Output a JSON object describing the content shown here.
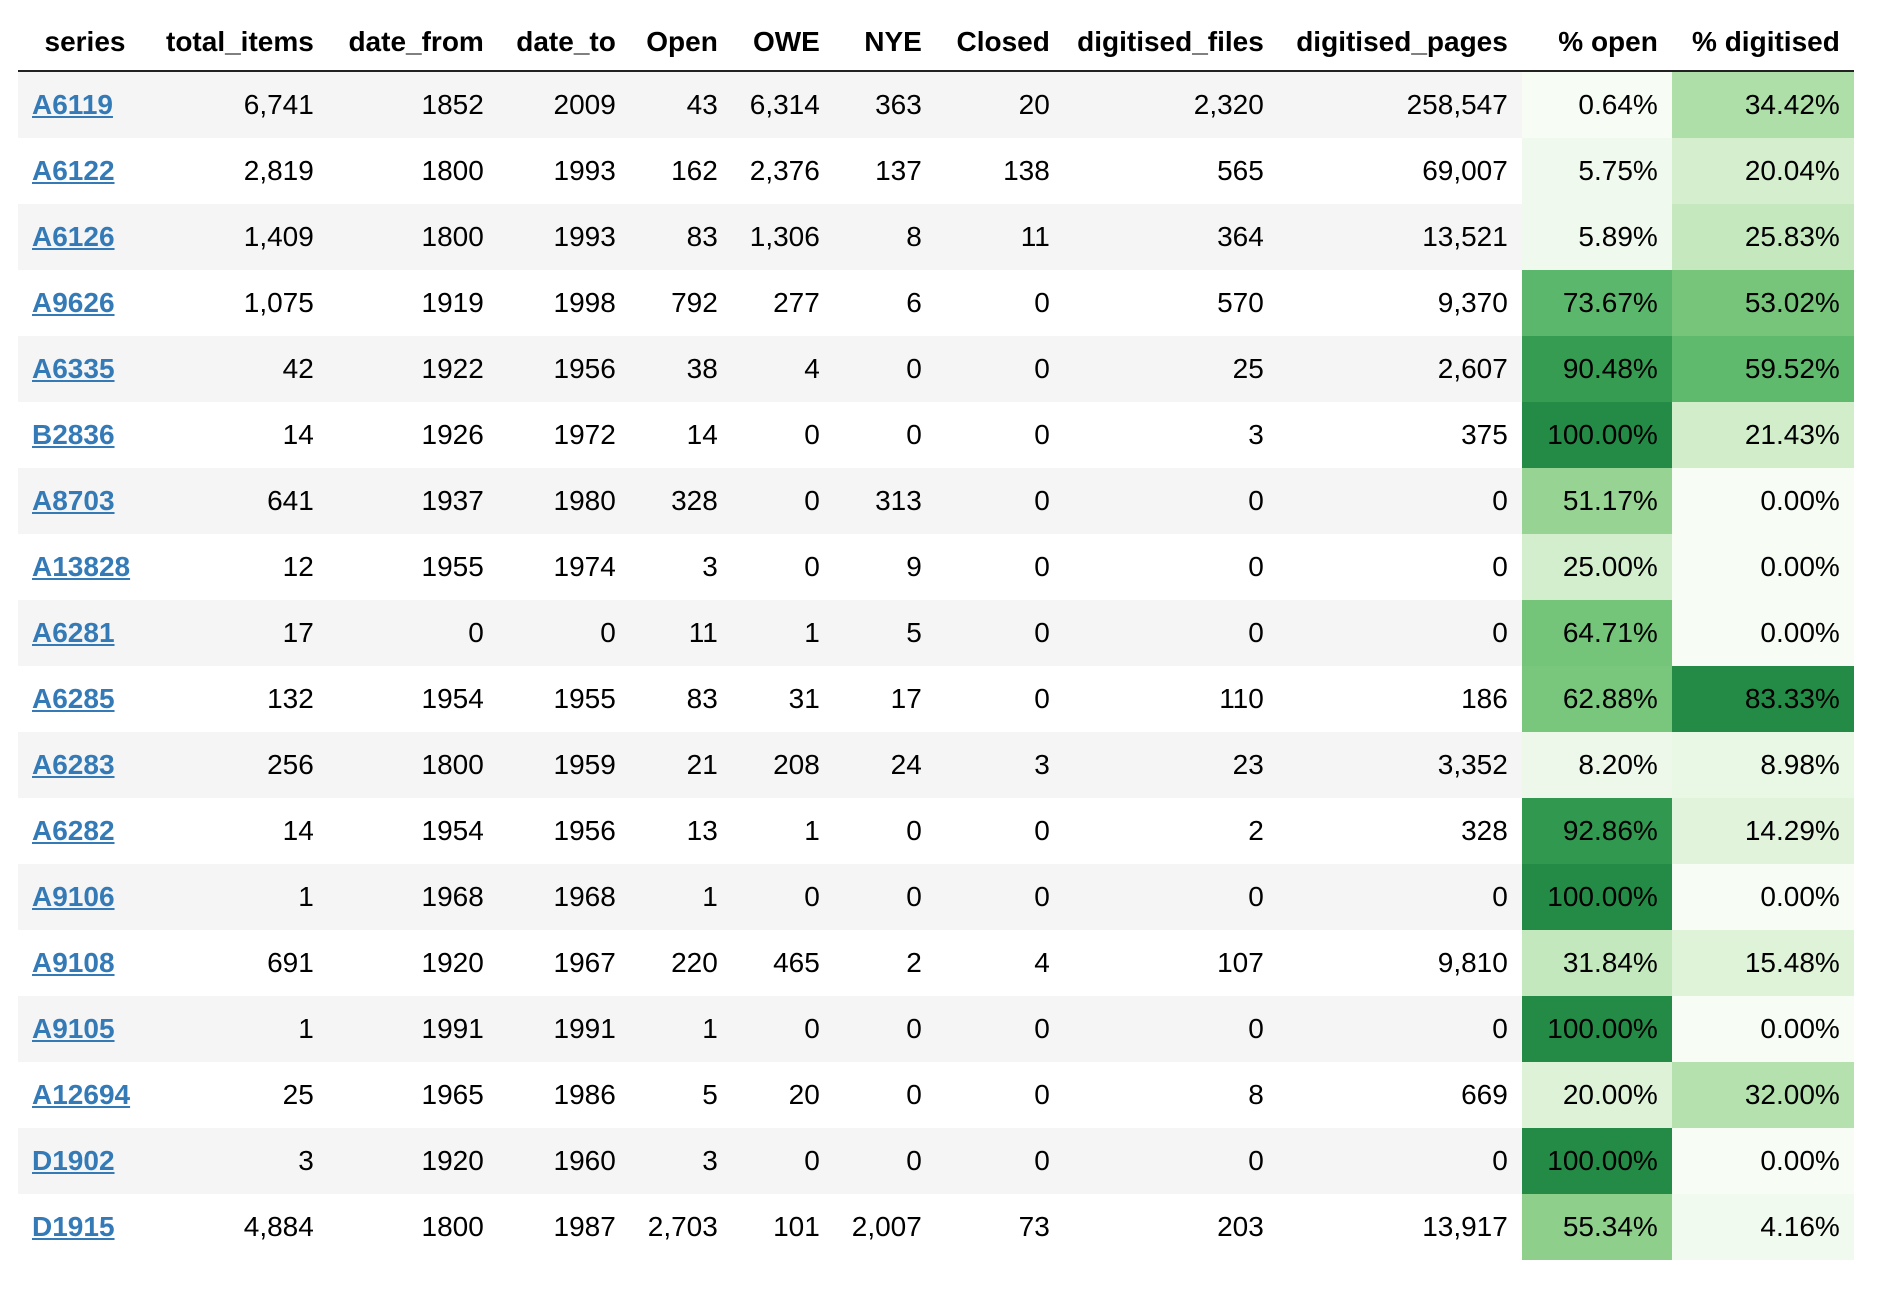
{
  "table": {
    "columns": [
      {
        "key": "series",
        "label": "series"
      },
      {
        "key": "total_items",
        "label": "total_items"
      },
      {
        "key": "date_from",
        "label": "date_from"
      },
      {
        "key": "date_to",
        "label": "date_to"
      },
      {
        "key": "Open",
        "label": "Open"
      },
      {
        "key": "OWE",
        "label": "OWE"
      },
      {
        "key": "NYE",
        "label": "NYE"
      },
      {
        "key": "Closed",
        "label": "Closed"
      },
      {
        "key": "digitised_files",
        "label": "digitised_files"
      },
      {
        "key": "digitised_pages",
        "label": "digitised_pages"
      },
      {
        "key": "pct_open",
        "label": "% open"
      },
      {
        "key": "pct_digitised",
        "label": "% digitised"
      }
    ],
    "rows": [
      {
        "series": "A6119",
        "total_items": "6,741",
        "date_from": "1852",
        "date_to": "2009",
        "Open": "43",
        "OWE": "6,314",
        "NYE": "363",
        "Closed": "20",
        "digitised_files": "2,320",
        "digitised_pages": "258,547",
        "pct_open": "0.64%",
        "pct_digitised": "34.42%"
      },
      {
        "series": "A6122",
        "total_items": "2,819",
        "date_from": "1800",
        "date_to": "1993",
        "Open": "162",
        "OWE": "2,376",
        "NYE": "137",
        "Closed": "138",
        "digitised_files": "565",
        "digitised_pages": "69,007",
        "pct_open": "5.75%",
        "pct_digitised": "20.04%"
      },
      {
        "series": "A6126",
        "total_items": "1,409",
        "date_from": "1800",
        "date_to": "1993",
        "Open": "83",
        "OWE": "1,306",
        "NYE": "8",
        "Closed": "11",
        "digitised_files": "364",
        "digitised_pages": "13,521",
        "pct_open": "5.89%",
        "pct_digitised": "25.83%"
      },
      {
        "series": "A9626",
        "total_items": "1,075",
        "date_from": "1919",
        "date_to": "1998",
        "Open": "792",
        "OWE": "277",
        "NYE": "6",
        "Closed": "0",
        "digitised_files": "570",
        "digitised_pages": "9,370",
        "pct_open": "73.67%",
        "pct_digitised": "53.02%"
      },
      {
        "series": "A6335",
        "total_items": "42",
        "date_from": "1922",
        "date_to": "1956",
        "Open": "38",
        "OWE": "4",
        "NYE": "0",
        "Closed": "0",
        "digitised_files": "25",
        "digitised_pages": "2,607",
        "pct_open": "90.48%",
        "pct_digitised": "59.52%"
      },
      {
        "series": "B2836",
        "total_items": "14",
        "date_from": "1926",
        "date_to": "1972",
        "Open": "14",
        "OWE": "0",
        "NYE": "0",
        "Closed": "0",
        "digitised_files": "3",
        "digitised_pages": "375",
        "pct_open": "100.00%",
        "pct_digitised": "21.43%"
      },
      {
        "series": "A8703",
        "total_items": "641",
        "date_from": "1937",
        "date_to": "1980",
        "Open": "328",
        "OWE": "0",
        "NYE": "313",
        "Closed": "0",
        "digitised_files": "0",
        "digitised_pages": "0",
        "pct_open": "51.17%",
        "pct_digitised": "0.00%"
      },
      {
        "series": "A13828",
        "total_items": "12",
        "date_from": "1955",
        "date_to": "1974",
        "Open": "3",
        "OWE": "0",
        "NYE": "9",
        "Closed": "0",
        "digitised_files": "0",
        "digitised_pages": "0",
        "pct_open": "25.00%",
        "pct_digitised": "0.00%"
      },
      {
        "series": "A6281",
        "total_items": "17",
        "date_from": "0",
        "date_to": "0",
        "Open": "11",
        "OWE": "1",
        "NYE": "5",
        "Closed": "0",
        "digitised_files": "0",
        "digitised_pages": "0",
        "pct_open": "64.71%",
        "pct_digitised": "0.00%"
      },
      {
        "series": "A6285",
        "total_items": "132",
        "date_from": "1954",
        "date_to": "1955",
        "Open": "83",
        "OWE": "31",
        "NYE": "17",
        "Closed": "0",
        "digitised_files": "110",
        "digitised_pages": "186",
        "pct_open": "62.88%",
        "pct_digitised": "83.33%"
      },
      {
        "series": "A6283",
        "total_items": "256",
        "date_from": "1800",
        "date_to": "1959",
        "Open": "21",
        "OWE": "208",
        "NYE": "24",
        "Closed": "3",
        "digitised_files": "23",
        "digitised_pages": "3,352",
        "pct_open": "8.20%",
        "pct_digitised": "8.98%"
      },
      {
        "series": "A6282",
        "total_items": "14",
        "date_from": "1954",
        "date_to": "1956",
        "Open": "13",
        "OWE": "1",
        "NYE": "0",
        "Closed": "0",
        "digitised_files": "2",
        "digitised_pages": "328",
        "pct_open": "92.86%",
        "pct_digitised": "14.29%"
      },
      {
        "series": "A9106",
        "total_items": "1",
        "date_from": "1968",
        "date_to": "1968",
        "Open": "1",
        "OWE": "0",
        "NYE": "0",
        "Closed": "0",
        "digitised_files": "0",
        "digitised_pages": "0",
        "pct_open": "100.00%",
        "pct_digitised": "0.00%"
      },
      {
        "series": "A9108",
        "total_items": "691",
        "date_from": "1920",
        "date_to": "1967",
        "Open": "220",
        "OWE": "465",
        "NYE": "2",
        "Closed": "4",
        "digitised_files": "107",
        "digitised_pages": "9,810",
        "pct_open": "31.84%",
        "pct_digitised": "15.48%"
      },
      {
        "series": "A9105",
        "total_items": "1",
        "date_from": "1991",
        "date_to": "1991",
        "Open": "1",
        "OWE": "0",
        "NYE": "0",
        "Closed": "0",
        "digitised_files": "0",
        "digitised_pages": "0",
        "pct_open": "100.00%",
        "pct_digitised": "0.00%"
      },
      {
        "series": "A12694",
        "total_items": "25",
        "date_from": "1965",
        "date_to": "1986",
        "Open": "5",
        "OWE": "20",
        "NYE": "0",
        "Closed": "0",
        "digitised_files": "8",
        "digitised_pages": "669",
        "pct_open": "20.00%",
        "pct_digitised": "32.00%"
      },
      {
        "series": "D1902",
        "total_items": "3",
        "date_from": "1920",
        "date_to": "1960",
        "Open": "3",
        "OWE": "0",
        "NYE": "0",
        "Closed": "0",
        "digitised_files": "0",
        "digitised_pages": "0",
        "pct_open": "100.00%",
        "pct_digitised": "0.00%"
      },
      {
        "series": "D1915",
        "total_items": "4,884",
        "date_from": "1800",
        "date_to": "1987",
        "Open": "2,703",
        "OWE": "101",
        "NYE": "2,007",
        "Closed": "73",
        "digitised_files": "203",
        "digitised_pages": "13,917",
        "pct_open": "55.34%",
        "pct_digitised": "4.16%"
      }
    ]
  },
  "colors": {
    "link": "#337ab7",
    "stripe_odd": "#f5f5f5",
    "stripe_even": "#ffffff",
    "heatmap_low": "#f7fcf5",
    "heatmap_high": "#238b45",
    "heatmap_text_dark": "#000000"
  }
}
